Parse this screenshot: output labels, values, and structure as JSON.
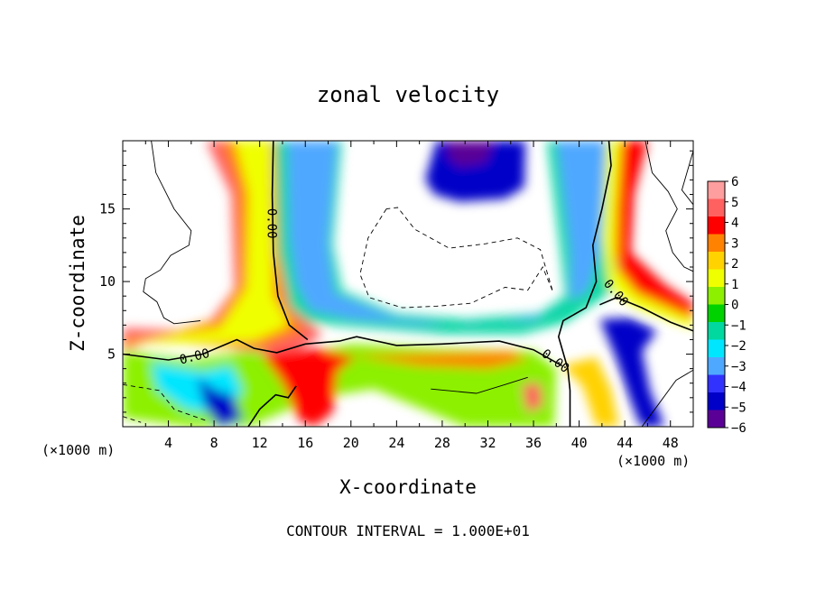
{
  "chart_data": {
    "type": "heatmap",
    "title": "zonal velocity",
    "xlabel": "X-coordinate",
    "ylabel": "Z-coordinate",
    "x_unit_label": "(×1000 m)",
    "x_unit_label_right": "(×1000 m)",
    "footer": "CONTOUR INTERVAL = 1.000E+01",
    "xlim": [
      0,
      50
    ],
    "ylim": [
      0,
      19.7
    ],
    "x_ticks": [
      "4",
      "8",
      "12",
      "16",
      "20",
      "24",
      "28",
      "32",
      "36",
      "40",
      "44",
      "48"
    ],
    "y_ticks": [
      "5",
      "10",
      "15"
    ],
    "colorbar": {
      "min": -6,
      "max": 6,
      "labels": [
        "6",
        "5",
        "4",
        "3",
        "2",
        "1",
        "0",
        "−1",
        "−2",
        "−3",
        "−4",
        "−5",
        "−6"
      ],
      "colors": [
        "#ff9e9e",
        "#ff6060",
        "#ff0000",
        "#ff8200",
        "#ffd200",
        "#f0ff00",
        "#8cf000",
        "#00d200",
        "#00d8a0",
        "#00e6ff",
        "#4fa8ff",
        "#3232ff",
        "#0000c8",
        "#5a0096"
      ]
    },
    "contour_labels": [
      {
        "text": "0.00",
        "x": 13.0,
        "z": 14.0,
        "rot": 90
      },
      {
        "text": "0.00",
        "x": 6.3,
        "z": 4.8,
        "rot": -14
      },
      {
        "text": "0.00",
        "x": 37.9,
        "z": 4.5,
        "rot": 36
      },
      {
        "text": "0.00",
        "x": 43.2,
        "z": 9.2,
        "rot": 50
      }
    ],
    "contour_zero": [
      [
        [
          0,
          5.0
        ],
        [
          4,
          4.6
        ],
        [
          7,
          5.0
        ],
        [
          10,
          6.0
        ],
        [
          11.5,
          5.4
        ],
        [
          13.5,
          5.1
        ],
        [
          16,
          5.7
        ],
        [
          19,
          5.9
        ],
        [
          20.5,
          6.2
        ],
        [
          24,
          5.6
        ],
        [
          28,
          5.7
        ],
        [
          33,
          5.9
        ],
        [
          36,
          5.3
        ],
        [
          38.5,
          4.2
        ]
      ],
      [
        [
          13.2,
          19.7
        ],
        [
          13.1,
          16
        ],
        [
          13.2,
          12
        ],
        [
          13.6,
          9
        ],
        [
          14.6,
          7
        ],
        [
          16.2,
          6.0
        ]
      ],
      [
        [
          39.2,
          0
        ],
        [
          39.2,
          2.5
        ],
        [
          39.0,
          4.0
        ],
        [
          38.2,
          6.2
        ],
        [
          38.6,
          7.3
        ],
        [
          40.6,
          8.2
        ],
        [
          41.5,
          10
        ],
        [
          41.2,
          12.5
        ],
        [
          42,
          15
        ],
        [
          42.8,
          18
        ],
        [
          42.6,
          19.7
        ]
      ],
      [
        [
          41.8,
          8.4
        ],
        [
          43.3,
          8.9
        ],
        [
          45.5,
          8.2
        ],
        [
          48,
          7.2
        ],
        [
          50,
          6.6
        ]
      ],
      [
        [
          11,
          0.0
        ],
        [
          12,
          1.2
        ],
        [
          13.4,
          2.2
        ],
        [
          14.5,
          2.0
        ],
        [
          15.2,
          2.8
        ]
      ]
    ],
    "contour_positive_thin": [
      [
        [
          2.5,
          19.7
        ],
        [
          2.9,
          17.5
        ],
        [
          4.5,
          15.0
        ],
        [
          6.0,
          13.5
        ],
        [
          5.8,
          12.5
        ],
        [
          4.2,
          11.8
        ],
        [
          3.3,
          10.8
        ],
        [
          2.0,
          10.2
        ],
        [
          1.8,
          9.3
        ],
        [
          3.0,
          8.6
        ],
        [
          3.6,
          7.5
        ],
        [
          4.5,
          7.1
        ],
        [
          6.8,
          7.3
        ]
      ],
      [
        [
          27,
          2.6
        ],
        [
          31,
          2.3
        ],
        [
          33.5,
          2.9
        ],
        [
          35.5,
          3.4
        ]
      ],
      [
        [
          45.5,
          0
        ],
        [
          47,
          1.6
        ],
        [
          48.5,
          3.2
        ],
        [
          50,
          3.9
        ]
      ],
      [
        [
          45.8,
          19.7
        ],
        [
          46.4,
          17.5
        ],
        [
          47.8,
          16.2
        ],
        [
          48.6,
          15.0
        ],
        [
          47.6,
          13.5
        ],
        [
          48.2,
          12.0
        ],
        [
          49.2,
          11.0
        ],
        [
          50,
          10.7
        ]
      ],
      [
        [
          50,
          19.0
        ],
        [
          49.0,
          16.3
        ],
        [
          50,
          15.3
        ]
      ]
    ],
    "contour_negative_dashed": [
      [
        [
          23.1,
          15.0
        ],
        [
          21.5,
          13.0
        ],
        [
          20.8,
          10.5
        ],
        [
          21.6,
          8.9
        ],
        [
          24.5,
          8.2
        ],
        [
          27.5,
          8.3
        ],
        [
          30.5,
          8.5
        ],
        [
          33.5,
          9.6
        ],
        [
          35.5,
          9.4
        ],
        [
          36.8,
          11.0
        ],
        [
          37.7,
          9.3
        ],
        [
          36.6,
          12.2
        ],
        [
          34.6,
          13.0
        ],
        [
          31.8,
          12.6
        ],
        [
          28.6,
          12.3
        ],
        [
          25.6,
          13.6
        ],
        [
          24.1,
          15.1
        ],
        [
          23.1,
          15.0
        ]
      ],
      [
        [
          0,
          2.9
        ],
        [
          3.2,
          2.5
        ],
        [
          4.5,
          1.2
        ],
        [
          7.4,
          0.4
        ]
      ],
      [
        [
          0,
          0.7
        ],
        [
          1.6,
          0.3
        ]
      ]
    ]
  }
}
